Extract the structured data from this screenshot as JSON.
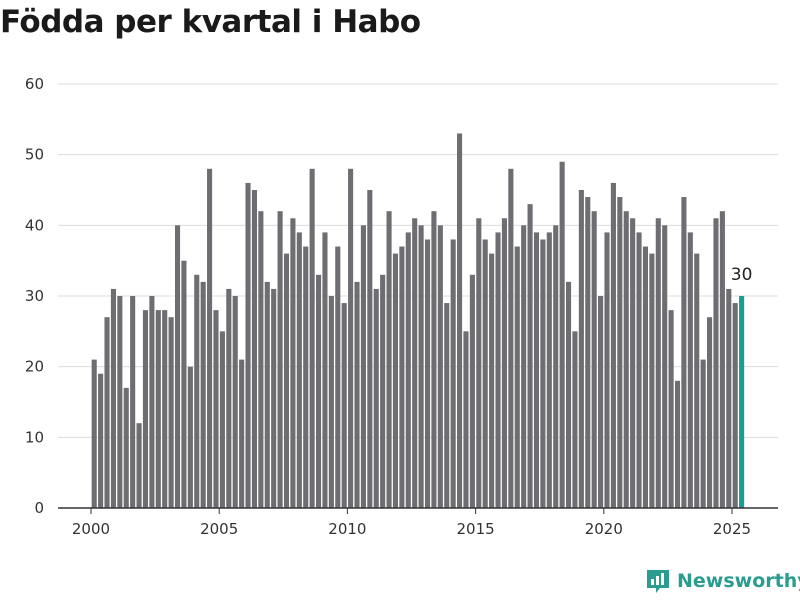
{
  "chart_data": {
    "type": "bar",
    "title": "Födda per kvartal i Habo",
    "x_start_year": 2000,
    "values": [
      21,
      19,
      27,
      31,
      30,
      17,
      30,
      12,
      28,
      30,
      28,
      28,
      27,
      40,
      35,
      20,
      33,
      32,
      48,
      28,
      25,
      31,
      30,
      21,
      46,
      45,
      42,
      32,
      31,
      42,
      36,
      41,
      39,
      37,
      48,
      33,
      39,
      30,
      37,
      29,
      48,
      32,
      40,
      45,
      31,
      33,
      42,
      36,
      37,
      39,
      41,
      40,
      38,
      42,
      40,
      29,
      38,
      53,
      25,
      33,
      41,
      38,
      36,
      39,
      41,
      48,
      37,
      40,
      43,
      39,
      38,
      39,
      40,
      49,
      32,
      25,
      45,
      44,
      42,
      30,
      39,
      46,
      44,
      42,
      41,
      39,
      37,
      36,
      41,
      40,
      28,
      18,
      44,
      39,
      36,
      21,
      27,
      41,
      42,
      31,
      29,
      30
    ],
    "highlight_last": true,
    "last_label": "30",
    "ylim": [
      0,
      60
    ],
    "yticks": [
      "0",
      "10",
      "20",
      "30",
      "40",
      "50",
      "60"
    ],
    "xticks": [
      "2000",
      "2005",
      "2010",
      "2015",
      "2020",
      "2025"
    ],
    "grid": true,
    "colors": {
      "bar": "#6e6d72",
      "highlight": "#1a9e93",
      "grid": "#dcdcdc",
      "axis": "#333333"
    }
  },
  "brand": {
    "name": "Newsworthy",
    "icon": "newsworthy-logo-icon",
    "color": "#2a9d8f"
  }
}
